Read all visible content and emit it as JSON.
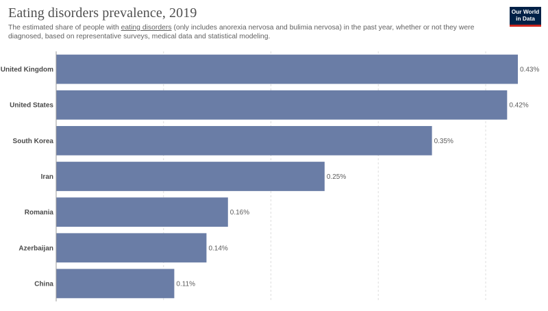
{
  "header": {
    "title": "Eating disorders prevalence, 2019",
    "subtitle_before_link": "The estimated share of people with ",
    "subtitle_link": "eating disorders",
    "subtitle_after_link": " (only includes anorexia nervosa and bulimia nervosa) in the past year, whether or not they were diagnosed, based on representative surveys, medical data and statistical modeling."
  },
  "logo": {
    "line1": "Our World",
    "line2": "in Data"
  },
  "colors": {
    "bar": "#6a7da6",
    "label": "#4a4a4a",
    "value": "#5b5b5b",
    "grid": "#dddddd",
    "axis": "#999999"
  },
  "chart_data": {
    "type": "bar",
    "orientation": "horizontal",
    "categories": [
      "United Kingdom",
      "United States",
      "South Korea",
      "Iran",
      "Romania",
      "Azerbaijan",
      "China"
    ],
    "values": [
      0.43,
      0.42,
      0.35,
      0.25,
      0.16,
      0.14,
      0.11
    ],
    "value_labels": [
      "0.43%",
      "0.42%",
      "0.35%",
      "0.25%",
      "0.16%",
      "0.14%",
      "0.11%"
    ],
    "unit": "%",
    "xlim": [
      0,
      0.43
    ],
    "grid": true,
    "gridlines_at": [
      0.1,
      0.2,
      0.3,
      0.4
    ]
  }
}
